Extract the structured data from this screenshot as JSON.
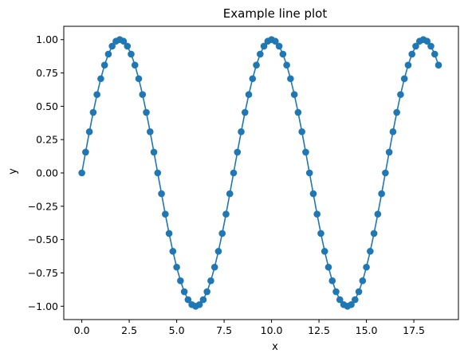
{
  "chart_data": {
    "type": "line",
    "title": "Example line plot",
    "xlabel": "x",
    "ylabel": "y",
    "xlim": [
      -0.95,
      19.85
    ],
    "ylim": [
      -1.1,
      1.1
    ],
    "xticks": [
      0.0,
      2.5,
      5.0,
      7.5,
      10.0,
      12.5,
      15.0,
      17.5
    ],
    "xtick_labels": [
      "0.0",
      "2.5",
      "5.0",
      "7.5",
      "10.0",
      "12.5",
      "15.0",
      "17.5"
    ],
    "yticks": [
      -1.0,
      -0.75,
      -0.5,
      -0.25,
      0.0,
      0.25,
      0.5,
      0.75,
      1.0
    ],
    "ytick_labels": [
      "−1.00",
      "−0.75",
      "−0.50",
      "−0.25",
      "0.00",
      "0.25",
      "0.50",
      "0.75",
      "1.00"
    ],
    "grid": false,
    "legend": "none",
    "line_color": "#1f77b4",
    "marker": "circle",
    "series": [
      {
        "x": [
          0.0,
          0.2,
          0.4,
          0.6,
          0.8,
          1.0,
          1.2,
          1.4,
          1.6,
          1.8,
          2.0,
          2.2,
          2.4,
          2.6,
          2.8,
          3.0,
          3.2,
          3.4,
          3.6,
          3.8,
          4.0,
          4.2,
          4.4,
          4.6,
          4.8,
          5.0,
          5.2,
          5.4,
          5.6,
          5.8,
          6.0,
          6.2,
          6.4,
          6.6,
          6.8,
          7.0,
          7.2,
          7.4,
          7.6,
          7.8,
          8.0,
          8.2,
          8.4,
          8.6,
          8.8,
          9.0,
          9.2,
          9.4,
          9.6,
          9.8,
          10.0,
          10.2,
          10.4,
          10.6,
          10.8,
          11.0,
          11.2,
          11.4,
          11.6,
          11.8,
          12.0,
          12.2,
          12.4,
          12.6,
          12.8,
          13.0,
          13.2,
          13.4,
          13.6,
          13.8,
          14.0,
          14.2,
          14.4,
          14.6,
          14.8,
          15.0,
          15.2,
          15.4,
          15.6,
          15.8,
          16.0,
          16.2,
          16.4,
          16.6,
          16.8,
          17.0,
          17.2,
          17.4,
          17.6,
          17.8,
          18.0,
          18.2,
          18.4,
          18.6,
          18.8
        ],
        "y": [
          0.0,
          0.156,
          0.309,
          0.454,
          0.588,
          0.707,
          0.809,
          0.891,
          0.951,
          0.988,
          1.0,
          0.988,
          0.951,
          0.891,
          0.809,
          0.707,
          0.588,
          0.454,
          0.309,
          0.156,
          0.0,
          -0.156,
          -0.309,
          -0.454,
          -0.588,
          -0.707,
          -0.809,
          -0.891,
          -0.951,
          -0.988,
          -1.0,
          -0.988,
          -0.951,
          -0.891,
          -0.809,
          -0.707,
          -0.588,
          -0.454,
          -0.309,
          -0.156,
          0.0,
          0.156,
          0.309,
          0.454,
          0.588,
          0.707,
          0.809,
          0.891,
          0.951,
          0.988,
          1.0,
          0.988,
          0.951,
          0.891,
          0.809,
          0.707,
          0.588,
          0.454,
          0.309,
          0.156,
          0.0,
          -0.156,
          -0.309,
          -0.454,
          -0.588,
          -0.707,
          -0.809,
          -0.891,
          -0.951,
          -0.988,
          -1.0,
          -0.988,
          -0.951,
          -0.891,
          -0.809,
          -0.707,
          -0.588,
          -0.454,
          -0.309,
          -0.156,
          0.0,
          0.156,
          0.309,
          0.454,
          0.588,
          0.707,
          0.809,
          0.891,
          0.951,
          0.988,
          1.0,
          0.988,
          0.951,
          0.891,
          0.809
        ]
      }
    ]
  }
}
